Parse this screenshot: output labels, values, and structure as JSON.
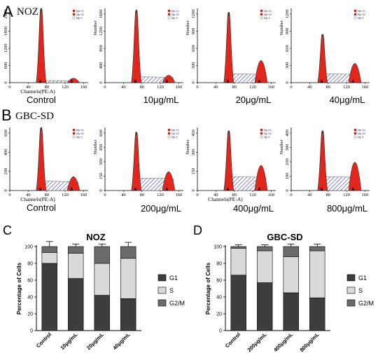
{
  "panels": {
    "A": {
      "letter": "A",
      "cell_line": "NOZ"
    },
    "B": {
      "letter": "B",
      "cell_line": "GBC-SD"
    },
    "C": {
      "letter": "C"
    },
    "D": {
      "letter": "D"
    }
  },
  "histogram_axis": {
    "x_title": "Channels(PE-A)",
    "y_title": "Number",
    "x_ticks": [
      "0",
      "40",
      "80",
      "120",
      "160"
    ],
    "legend_entries": [
      "Dip G1",
      "Dip G2",
      "Dip S"
    ]
  },
  "flow_rows": [
    {
      "row": "A",
      "plots": [
        {
          "condition": "Control",
          "y_ticks": [
            "0",
            "600",
            "1200",
            "1800",
            "2400"
          ],
          "show_y_title": false,
          "show_x_title": true,
          "g1_peak": 0.95,
          "s_level": 0.03,
          "g2_peak": 0.06
        },
        {
          "condition": "10μg/mL",
          "y_ticks": [
            "0",
            "400",
            "800",
            "1200",
            "1600"
          ],
          "show_y_title": true,
          "show_x_title": false,
          "g1_peak": 0.93,
          "s_level": 0.08,
          "g2_peak": 0.1
        },
        {
          "condition": "20μg/mL",
          "y_ticks": [
            "0",
            "300",
            "600",
            "900",
            "1200"
          ],
          "show_y_title": true,
          "show_x_title": false,
          "g1_peak": 0.9,
          "s_level": 0.12,
          "g2_peak": 0.3
        },
        {
          "condition": "40μg/mL",
          "y_ticks": [
            "0",
            "300",
            "600",
            "900",
            "1200"
          ],
          "show_y_title": true,
          "show_x_title": false,
          "g1_peak": 0.62,
          "s_level": 0.12,
          "g2_peak": 0.26
        }
      ]
    },
    {
      "row": "B",
      "plots": [
        {
          "condition": "Control",
          "y_ticks": [
            "0",
            "200",
            "400",
            "600"
          ],
          "show_y_title": false,
          "show_x_title": true,
          "g1_peak": 0.95,
          "s_level": 0.15,
          "g2_peak": 0.22
        },
        {
          "condition": "200μg/mL",
          "y_ticks": [
            "0",
            "150",
            "300",
            "450",
            "600"
          ],
          "show_y_title": true,
          "show_x_title": false,
          "g1_peak": 0.88,
          "s_level": 0.2,
          "g2_peak": 0.3
        },
        {
          "condition": "400μg/mL",
          "y_ticks": [
            "0",
            "150",
            "300",
            "450"
          ],
          "show_y_title": true,
          "show_x_title": true,
          "g1_peak": 0.9,
          "s_level": 0.22,
          "g2_peak": 0.4
        },
        {
          "condition": "800μg/mL",
          "y_ticks": [
            "0",
            "100",
            "200",
            "300",
            "400"
          ],
          "show_y_title": true,
          "show_x_title": false,
          "g1_peak": 0.9,
          "s_level": 0.22,
          "g2_peak": 0.45
        }
      ]
    }
  ],
  "chart_data": [
    {
      "type": "bar",
      "stacked": true,
      "title": "NOZ",
      "ylabel": "Percentage of Cells",
      "xlabel": "",
      "ylim": [
        0,
        100
      ],
      "yticks": [
        0,
        20,
        40,
        60,
        80,
        100
      ],
      "categories": [
        "Control",
        "10μg/mL",
        "20μg/mL",
        "40μg/mL"
      ],
      "series": [
        {
          "name": "G1",
          "values": [
            80,
            62,
            42,
            38
          ],
          "errors": [
            4,
            3,
            2,
            2
          ],
          "color": "#3d3d3d"
        },
        {
          "name": "S",
          "values": [
            13,
            30,
            38,
            48
          ],
          "errors": [
            3,
            3,
            2,
            2
          ],
          "color": "#d9d9d9"
        },
        {
          "name": "G2/M",
          "values": [
            7,
            8,
            20,
            14
          ],
          "errors": [
            6,
            3,
            3,
            5
          ],
          "color": "#6b6b6b"
        }
      ],
      "legend_position": "right"
    },
    {
      "type": "bar",
      "stacked": true,
      "title": "GBC-SD",
      "ylabel": "Percentage of Cells",
      "xlabel": "",
      "ylim": [
        0,
        100
      ],
      "yticks": [
        0,
        20,
        40,
        60,
        80,
        100
      ],
      "categories": [
        "Control",
        "200μg/mL",
        "400μg/mL",
        "800μg/mL"
      ],
      "series": [
        {
          "name": "G1",
          "values": [
            66,
            57,
            45,
            39
          ],
          "errors": [
            2,
            3,
            2,
            2
          ],
          "color": "#3d3d3d"
        },
        {
          "name": "S",
          "values": [
            32,
            38,
            43,
            56
          ],
          "errors": [
            1,
            1,
            2,
            2
          ],
          "color": "#d9d9d9"
        },
        {
          "name": "G2/M",
          "values": [
            2,
            5,
            12,
            5
          ],
          "errors": [
            2,
            2,
            3,
            3
          ],
          "color": "#6b6b6b"
        }
      ],
      "legend_position": "right"
    }
  ]
}
